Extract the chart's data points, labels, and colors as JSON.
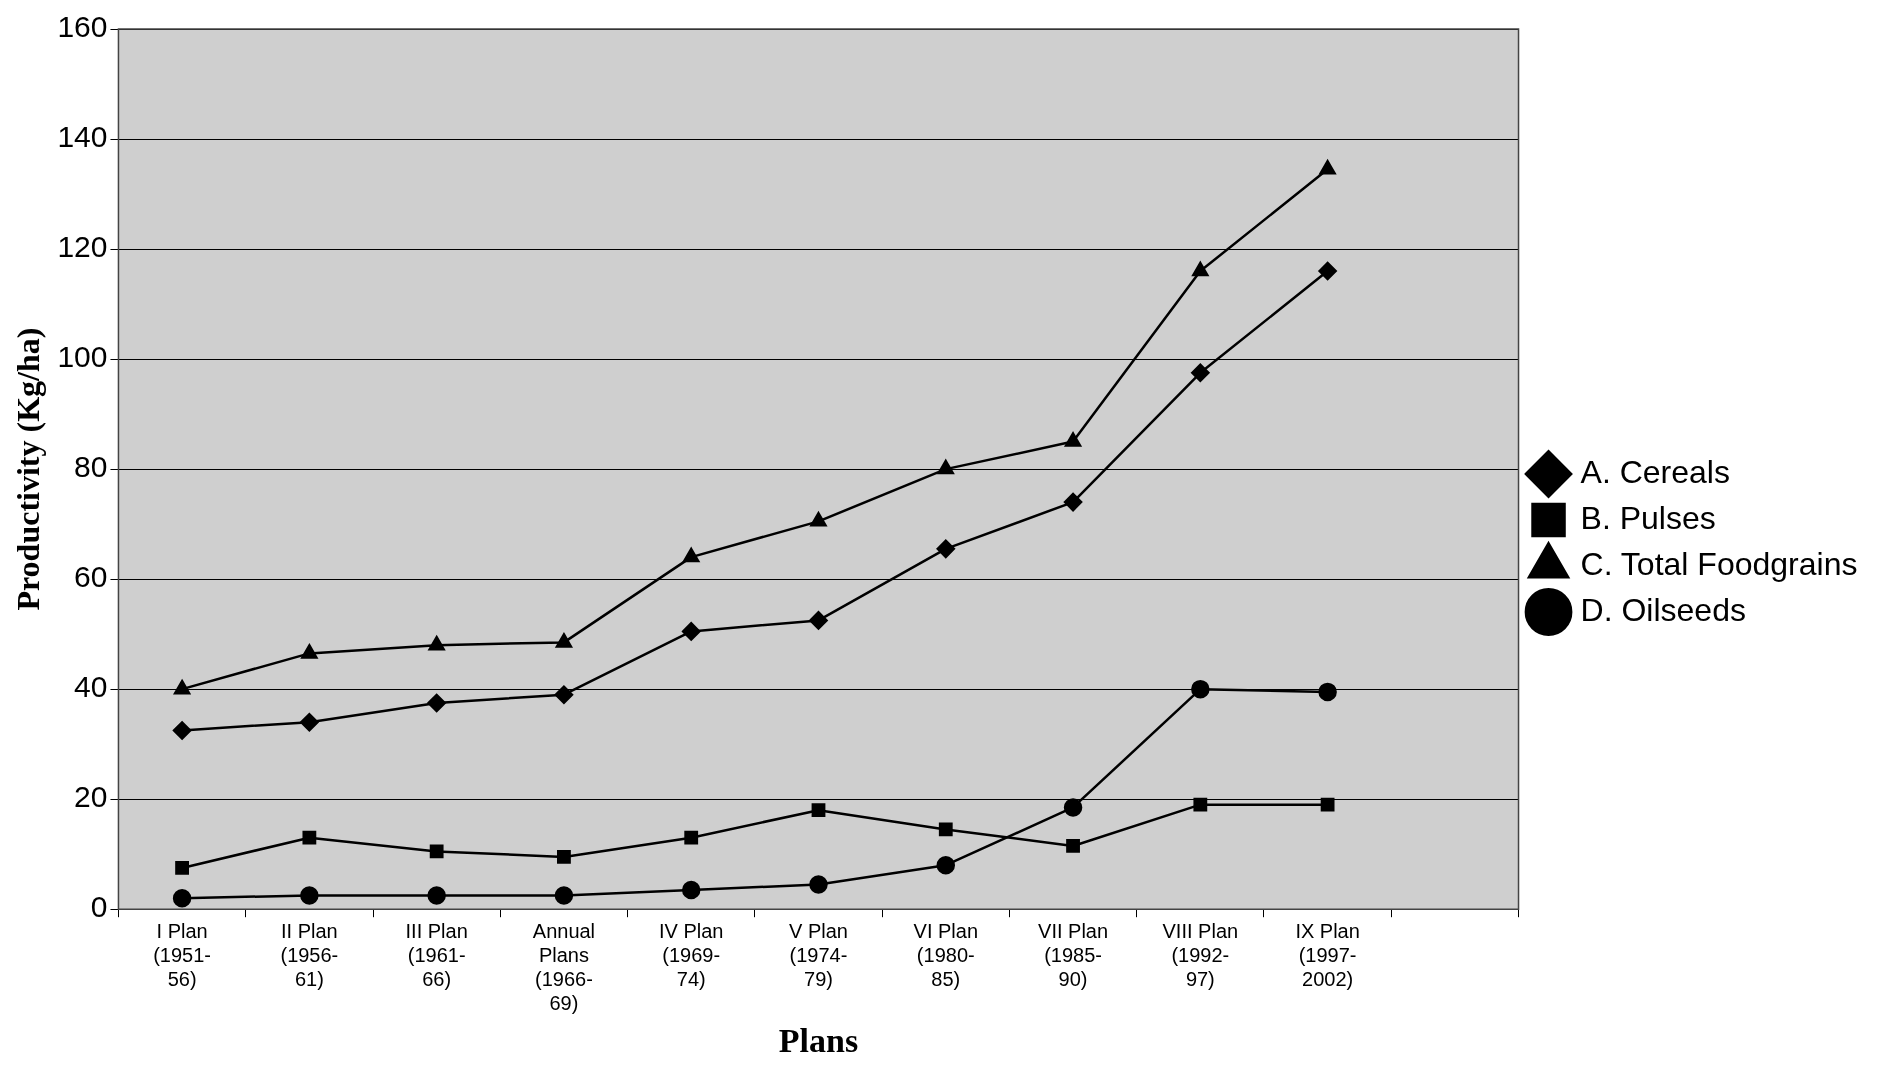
{
  "chart_data": {
    "type": "line",
    "xlabel": "Plans",
    "ylabel": "Productivity (Kg/ha)",
    "categories": [
      "I Plan\n(1951-\n56)",
      "II Plan\n(1956-\n61)",
      "III Plan\n(1961-\n66)",
      "Annual\nPlans\n(1966-\n69)",
      "IV Plan\n(1969-\n74)",
      "V Plan\n(1974-\n79)",
      "VI Plan\n(1980-\n85)",
      "VII Plan\n(1985-\n90)",
      "VIII Plan\n(1992-\n97)",
      "IX Plan\n(1997-\n2002)",
      null
    ],
    "series": [
      {
        "name": "A. Cereals",
        "color": "#000000",
        "marker": "diamond",
        "values": [
          32.5,
          34,
          37.5,
          39,
          50.5,
          52.5,
          65.5,
          74,
          97.5,
          116,
          null
        ]
      },
      {
        "name": "B. Pulses",
        "color": "#000000",
        "marker": "square",
        "values": [
          7.5,
          13,
          10.5,
          9.5,
          13,
          18,
          14.5,
          11.5,
          19,
          19,
          null
        ]
      },
      {
        "name": "C. Total Foodgrains",
        "color": "#000000",
        "marker": "triangle",
        "values": [
          40,
          46.5,
          48,
          48.5,
          64,
          70.5,
          80,
          85,
          116,
          134.5,
          null
        ]
      },
      {
        "name": "D. Oilseeds",
        "color": "#000000",
        "marker": "circle",
        "values": [
          2,
          2.5,
          2.5,
          2.5,
          3.5,
          4.5,
          8,
          18.5,
          40,
          39.5,
          null
        ]
      }
    ],
    "ylim": [
      0,
      160
    ],
    "yticks": [
      0,
      20,
      40,
      60,
      80,
      100,
      120,
      140,
      160
    ],
    "grid": "y",
    "legend": "right",
    "line_style": "solid"
  }
}
